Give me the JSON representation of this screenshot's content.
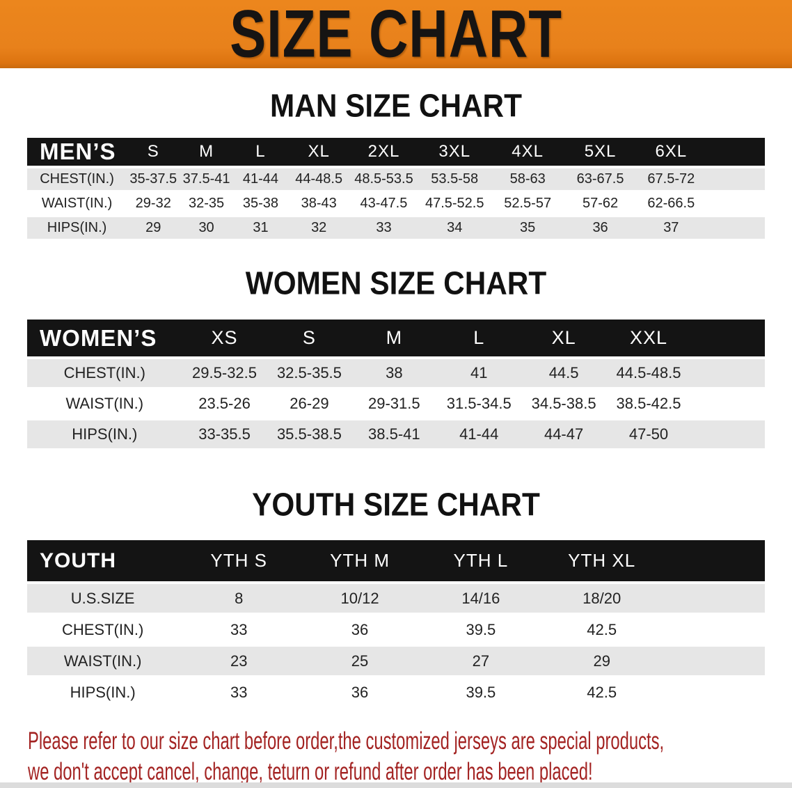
{
  "banner": {
    "title": "SIZE CHART"
  },
  "colors": {
    "banner_bg": "#E8811B",
    "table_header_bg": "#141414",
    "row_stripe": "#E6E6E6",
    "disclaimer_text": "#A32322"
  },
  "sections": [
    {
      "heading": "MAN SIZE CHART",
      "label": "MEN’S",
      "columns": [
        "S",
        "M",
        "L",
        "XL",
        "2XL",
        "3XL",
        "4XL",
        "5XL",
        "6XL"
      ],
      "rows": [
        {
          "label": "CHEST(IN.)",
          "values": [
            "35-37.5",
            "37.5-41",
            "41-44",
            "44-48.5",
            "48.5-53.5",
            "53.5-58",
            "58-63",
            "63-67.5",
            "67.5-72"
          ]
        },
        {
          "label": "WAIST(IN.)",
          "values": [
            "29-32",
            "32-35",
            "35-38",
            "38-43",
            "43-47.5",
            "47.5-52.5",
            "52.5-57",
            "57-62",
            "62-66.5"
          ]
        },
        {
          "label": "HIPS(IN.)",
          "values": [
            "29",
            "30",
            "31",
            "32",
            "33",
            "34",
            "35",
            "36",
            "37"
          ]
        }
      ]
    },
    {
      "heading": "WOMEN SIZE CHART",
      "label": "WOMEN’S",
      "columns": [
        "XS",
        "S",
        "M",
        "L",
        "XL",
        "XXL"
      ],
      "rows": [
        {
          "label": "CHEST(IN.)",
          "values": [
            "29.5-32.5",
            "32.5-35.5",
            "38",
            "41",
            "44.5",
            "44.5-48.5"
          ]
        },
        {
          "label": "WAIST(IN.)",
          "values": [
            "23.5-26",
            "26-29",
            "29-31.5",
            "31.5-34.5",
            "34.5-38.5",
            "38.5-42.5"
          ]
        },
        {
          "label": "HIPS(IN.)",
          "values": [
            "33-35.5",
            "35.5-38.5",
            "38.5-41",
            "41-44",
            "44-47",
            "47-50"
          ]
        }
      ]
    },
    {
      "heading": "YOUTH SIZE CHART",
      "label": "YOUTH",
      "columns": [
        "YTH S",
        "YTH M",
        "YTH L",
        "YTH XL"
      ],
      "rows": [
        {
          "label": "U.S.SIZE",
          "values": [
            "8",
            "10/12",
            "14/16",
            "18/20"
          ]
        },
        {
          "label": "CHEST(IN.)",
          "values": [
            "33",
            "36",
            "39.5",
            "42.5"
          ]
        },
        {
          "label": "WAIST(IN.)",
          "values": [
            "23",
            "25",
            "27",
            "29"
          ]
        },
        {
          "label": "HIPS(IN.)",
          "values": [
            "33",
            "36",
            "39.5",
            "42.5"
          ]
        }
      ]
    }
  ],
  "disclaimer": {
    "line1": "Please refer to our size chart before order,the customized jerseys are special products,",
    "line2": "we don't accept cancel, change, teturn or refund after order has been placed!"
  }
}
